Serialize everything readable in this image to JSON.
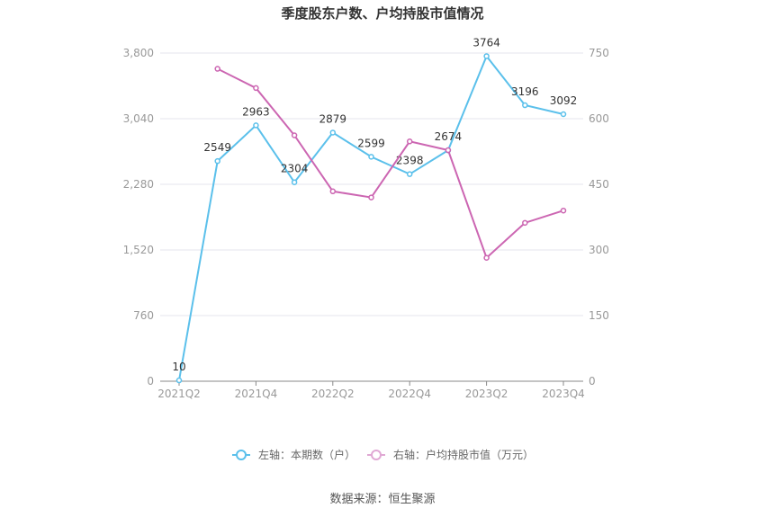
{
  "chart_data": {
    "type": "line",
    "title": "季度股东户数、户均持股市值情况",
    "categories": [
      "2021Q2",
      "2021Q3",
      "2021Q4",
      "2022Q1",
      "2022Q2",
      "2022Q3",
      "2022Q4",
      "2023Q1",
      "2023Q2",
      "2023Q3",
      "2023Q4"
    ],
    "x_tick_labels": [
      "2021Q2",
      "2021Q4",
      "2022Q2",
      "2022Q4",
      "2023Q2",
      "2023Q4"
    ],
    "y_left": {
      "min": 0,
      "max": 3800,
      "ticks": [
        "0",
        "760",
        "1,520",
        "2,280",
        "3,040",
        "3,800"
      ]
    },
    "y_right": {
      "min": 0,
      "max": 750,
      "ticks": [
        "0",
        "150",
        "300",
        "450",
        "600",
        "750"
      ]
    },
    "grid": true,
    "legend_position": "bottom-center",
    "series": [
      {
        "name": "左轴：本期数（户）",
        "axis": "left",
        "color": "#5bc0eb",
        "values": [
          10,
          2549,
          2963,
          2304,
          2879,
          2599,
          2398,
          2674,
          3764,
          3196,
          3092
        ],
        "labels": [
          "10",
          "2549",
          "2963",
          "2304",
          "2879",
          "2599",
          "2398",
          "2674",
          "3764",
          "3196",
          "3092"
        ]
      },
      {
        "name": "右轴：户均持股市值（万元）",
        "axis": "right",
        "color": "#cc66b2",
        "values": [
          null,
          714,
          670,
          562,
          434,
          420,
          548,
          528,
          282,
          362,
          390
        ]
      }
    ]
  },
  "source": "数据来源：恒生聚源"
}
